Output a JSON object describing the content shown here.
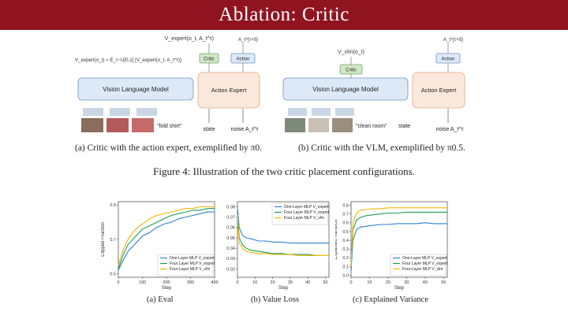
{
  "slide": {
    "title": "Ablation: Critic"
  },
  "diagram_a": {
    "top_formula": "V_expert(o_t, A_t^τ)",
    "left_formula": "V_expert(o_t) ≈ E_τ~U[0,1] [V_expert(o_t, A_t^τ)]",
    "critic": "Critic",
    "action": "Action",
    "action_top": "A_t^{τ+δ}",
    "vlm": "Vision Language Model",
    "expert": "Action Expert",
    "prompt": "\"fold shirt\"",
    "state": "state",
    "noise": "noise A_t^τ",
    "caption": "(a) Critic with the action expert, exemplified by π0."
  },
  "diagram_b": {
    "top_formula": "V_vlm(o_t)",
    "critic": "Critic",
    "action": "Action",
    "action_top": "A_t^{τ+δ}",
    "vlm": "Vision Language Model",
    "expert": "Action Expert",
    "prompt": "\"clean room\"",
    "state": "state",
    "noise": "noise A_t^τ",
    "caption": "(b) Critic with the VLM, exemplified by π0.5."
  },
  "figure_caption": "Figure 4: Illustration of the two critic placement configurations.",
  "colors": {
    "banner": "#8f1420",
    "series_blue": "#2f7fd6",
    "series_green": "#1f9b5a",
    "series_yellow": "#f2b705",
    "critic_box": "#cfe8c4",
    "vlm_box": "#dde9f7",
    "expert_box": "#fbe8dc"
  },
  "chart_data": [
    {
      "type": "line",
      "caption": "(a) Eval",
      "xlabel": "Step",
      "ylabel": "Clipped Fraction",
      "xlim": [
        0,
        400
      ],
      "ylim": [
        0.48,
        0.92
      ],
      "xticks": [
        0,
        100,
        200,
        300,
        400
      ],
      "yticks": [
        0.5,
        0.7,
        0.9
      ],
      "legend": "bottom-right",
      "series": [
        {
          "name": "One-Layer MLP V_expert",
          "color": "#2f7fd6",
          "x": [
            0,
            20,
            40,
            60,
            80,
            100,
            130,
            160,
            190,
            220,
            250,
            280,
            310,
            340,
            370,
            400
          ],
          "y": [
            0.52,
            0.58,
            0.63,
            0.66,
            0.69,
            0.72,
            0.74,
            0.77,
            0.79,
            0.8,
            0.82,
            0.83,
            0.84,
            0.85,
            0.86,
            0.86
          ]
        },
        {
          "name": "Four Layer MLP V_expert",
          "color": "#1f9b5a",
          "x": [
            0,
            20,
            40,
            60,
            80,
            100,
            130,
            160,
            190,
            220,
            250,
            280,
            310,
            340,
            370,
            400
          ],
          "y": [
            0.53,
            0.61,
            0.67,
            0.7,
            0.73,
            0.76,
            0.78,
            0.8,
            0.82,
            0.84,
            0.85,
            0.86,
            0.87,
            0.87,
            0.88,
            0.88
          ]
        },
        {
          "name": "Four-Layer MLP V_vlm",
          "color": "#f2b705",
          "x": [
            0,
            20,
            40,
            60,
            80,
            100,
            130,
            160,
            190,
            220,
            250,
            280,
            310,
            340,
            370,
            400
          ],
          "y": [
            0.55,
            0.64,
            0.7,
            0.74,
            0.77,
            0.79,
            0.82,
            0.84,
            0.85,
            0.86,
            0.87,
            0.88,
            0.88,
            0.89,
            0.89,
            0.89
          ]
        }
      ]
    },
    {
      "type": "line",
      "caption": "(b) Value Loss",
      "xlabel": "Step",
      "ylabel": "Value Loss",
      "xlim": [
        0,
        52
      ],
      "ylim": [
        0.012,
        0.085
      ],
      "xticks": [
        0,
        10,
        20,
        30,
        40,
        50
      ],
      "yticks": [
        0.02,
        0.03,
        0.04,
        0.05,
        0.06,
        0.07,
        0.08
      ],
      "legend": "top-right",
      "series": [
        {
          "name": "One-Layer MLP V_expert",
          "color": "#2f7fd6",
          "x": [
            0,
            1,
            3,
            5,
            8,
            12,
            16,
            20,
            25,
            30,
            35,
            40,
            45,
            50,
            52
          ],
          "y": [
            0.078,
            0.06,
            0.052,
            0.05,
            0.049,
            0.047,
            0.047,
            0.046,
            0.046,
            0.045,
            0.045,
            0.045,
            0.045,
            0.045,
            0.045
          ]
        },
        {
          "name": "Four Layer MLP V_expert",
          "color": "#1f9b5a",
          "x": [
            0,
            1,
            3,
            5,
            8,
            12,
            16,
            20,
            25,
            30,
            35,
            40,
            45,
            50,
            52
          ],
          "y": [
            0.075,
            0.05,
            0.043,
            0.04,
            0.038,
            0.037,
            0.036,
            0.035,
            0.035,
            0.034,
            0.034,
            0.034,
            0.033,
            0.033,
            0.033
          ]
        },
        {
          "name": "Four Layer MLP V_vlm",
          "color": "#f2b705",
          "x": [
            0,
            1,
            3,
            5,
            8,
            12,
            16,
            20,
            25,
            30,
            35,
            40,
            45,
            50,
            52
          ],
          "y": [
            0.072,
            0.045,
            0.04,
            0.037,
            0.036,
            0.035,
            0.035,
            0.034,
            0.034,
            0.034,
            0.033,
            0.033,
            0.033,
            0.033,
            0.033
          ]
        }
      ]
    },
    {
      "type": "line",
      "caption": "(c) Explained Variance",
      "xlabel": "Step",
      "ylabel": "Explained Variance",
      "xlim": [
        0,
        52
      ],
      "ylim": [
        -0.02,
        0.84
      ],
      "xticks": [
        0,
        10,
        20,
        30,
        40,
        50
      ],
      "yticks": [
        0.0,
        0.1,
        0.2,
        0.3,
        0.4,
        0.5,
        0.6,
        0.7,
        0.8
      ],
      "legend": "bottom-right",
      "series": [
        {
          "name": "One-Layer MLP V_expert",
          "color": "#2f7fd6",
          "x": [
            0,
            1,
            3,
            5,
            8,
            12,
            16,
            20,
            25,
            30,
            35,
            40,
            45,
            50,
            52
          ],
          "y": [
            0.05,
            0.4,
            0.52,
            0.55,
            0.56,
            0.57,
            0.58,
            0.58,
            0.59,
            0.59,
            0.59,
            0.6,
            0.59,
            0.59,
            0.59
          ]
        },
        {
          "name": "Four Layer MLP V_expert",
          "color": "#1f9b5a",
          "x": [
            0,
            1,
            3,
            5,
            8,
            12,
            16,
            20,
            25,
            30,
            35,
            40,
            45,
            50,
            52
          ],
          "y": [
            0.08,
            0.52,
            0.63,
            0.66,
            0.68,
            0.69,
            0.7,
            0.71,
            0.71,
            0.72,
            0.72,
            0.72,
            0.72,
            0.72,
            0.72
          ]
        },
        {
          "name": "Four-Layer MLP V_vlm",
          "color": "#f2b705",
          "x": [
            0,
            1,
            3,
            5,
            8,
            12,
            16,
            20,
            25,
            30,
            35,
            40,
            45,
            50,
            52
          ],
          "y": [
            0.1,
            0.6,
            0.71,
            0.74,
            0.75,
            0.76,
            0.76,
            0.77,
            0.77,
            0.77,
            0.77,
            0.77,
            0.77,
            0.77,
            0.77
          ]
        }
      ]
    }
  ]
}
